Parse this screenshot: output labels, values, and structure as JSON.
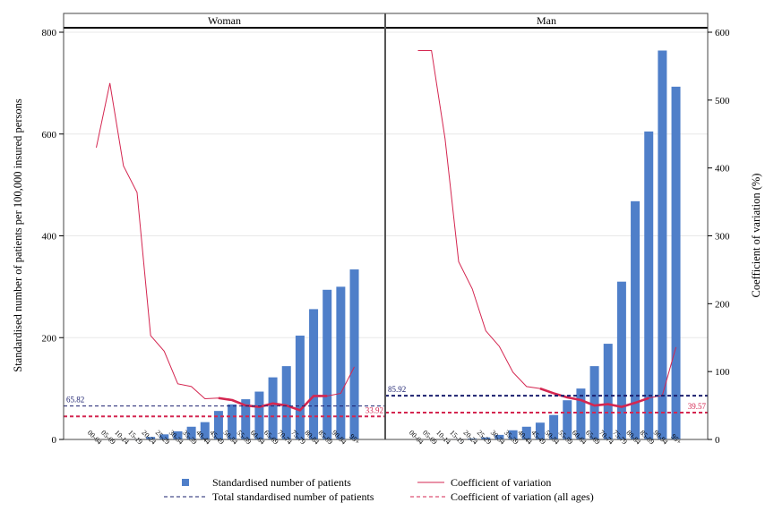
{
  "chart_data": {
    "type": "bar",
    "panels": [
      "Woman",
      "Man"
    ],
    "categories": [
      "00-04",
      "05-09",
      "10-14",
      "15-19",
      "20-24",
      "25-29",
      "30-34",
      "35-39",
      "40-44",
      "45-49",
      "50-54",
      "55-59",
      "60-64",
      "65-69",
      "70-74",
      "75-79",
      "80-84",
      "85-89",
      "90-94",
      "95+"
    ],
    "y_left": {
      "label": "Standardised number of patients per 100,000 insured persons",
      "lim": [
        0,
        800
      ],
      "ticks": [
        0,
        200,
        400,
        600,
        800
      ]
    },
    "y_right": {
      "label": "Coefficient of variation (%)",
      "lim": [
        0,
        600
      ],
      "ticks": [
        0,
        100,
        200,
        300,
        400,
        500,
        600
      ]
    },
    "series": [
      {
        "name": "Standardised number of patients",
        "axis": "left",
        "values": {
          "Woman": [
            0,
            0,
            0,
            1,
            5,
            10,
            16,
            25,
            34,
            56,
            69,
            79,
            94,
            122,
            144,
            204,
            256,
            294,
            300,
            334
          ],
          "Man": [
            0,
            0,
            0,
            1,
            2,
            4,
            9,
            18,
            25,
            33,
            48,
            77,
            100,
            144,
            188,
            310,
            468,
            605,
            764,
            693
          ]
        }
      },
      {
        "name": "Coefficient of variation",
        "axis": "right",
        "values": {
          "Woman": [
            430,
            525,
            403,
            364,
            153,
            130,
            82,
            78,
            60,
            61,
            58,
            50,
            48,
            53,
            50,
            43,
            64,
            64,
            68,
            107
          ],
          "Man": [
            573,
            573,
            443,
            262,
            222,
            160,
            137,
            99,
            78,
            75,
            68,
            62,
            58,
            50,
            52,
            48,
            54,
            61,
            65,
            136
          ]
        }
      }
    ],
    "reference_lines": [
      {
        "name": "Total standardised number of patients",
        "axis": "left",
        "values": {
          "Woman": 65.82,
          "Man": 85.92
        },
        "labels": {
          "Woman": "65.82",
          "Man": "85.92"
        }
      },
      {
        "name": "Coefficient of variation (all ages)",
        "axis": "right",
        "values": {
          "Woman": 33.92,
          "Man": 39.57
        },
        "labels": {
          "Woman": "33.92",
          "Man": "39.57"
        }
      }
    ],
    "legend": {
      "placement": "bottom",
      "entries": [
        "Standardised number of patients",
        "Coefficient of variation",
        "Total standardised number of patients",
        "Coefficient of variation (all ages)"
      ]
    },
    "colors": {
      "bar": "#4f7fc9",
      "cv": "#d42650",
      "total_ref": "#1a1f6e",
      "cv_ref": "#d42650",
      "grid": "#e8e8e8"
    },
    "grid": true
  }
}
